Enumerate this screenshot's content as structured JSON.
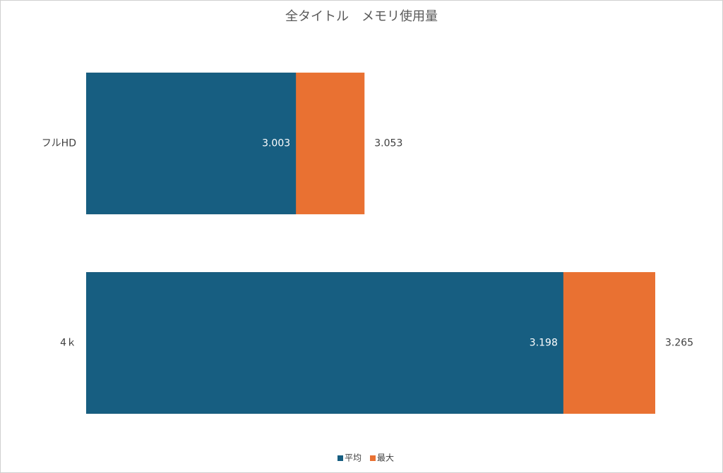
{
  "chart_data": {
    "type": "overlap_hbar",
    "title": "全タイトル　メモリ使用量",
    "categories": [
      "フルHD",
      "4ｋ"
    ],
    "series": [
      {
        "name": "平均",
        "color": "#175e81",
        "values": [
          3.003,
          3.198
        ]
      },
      {
        "name": "最大",
        "color": "#e97132",
        "values": [
          3.053,
          3.265
        ]
      }
    ],
    "xlim": [
      2.85,
      3.3
    ],
    "legend": "bottom"
  }
}
